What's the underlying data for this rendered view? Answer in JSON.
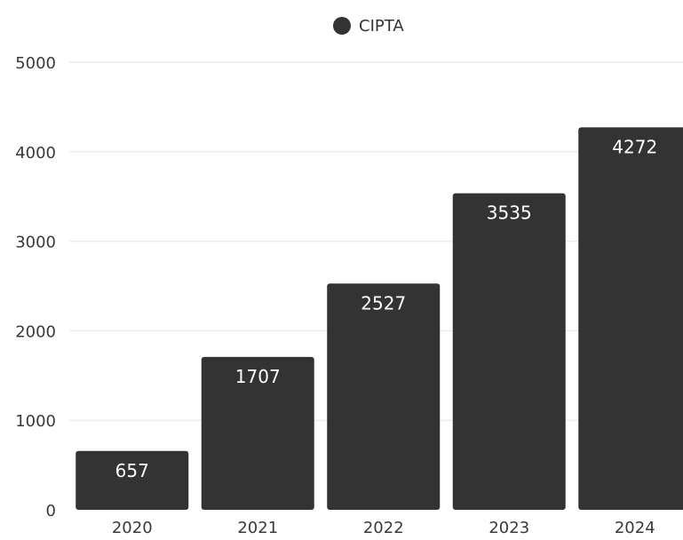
{
  "colors": {
    "bar": "#333333",
    "grid": "#ececec",
    "axis_text": "#3a3a3a",
    "bar_label": "#ffffff"
  },
  "chart_data": {
    "type": "bar",
    "categories": [
      "2020",
      "2021",
      "2022",
      "2023",
      "2024"
    ],
    "series": [
      {
        "name": "CIPTA",
        "values": [
          657,
          1707,
          2527,
          3535,
          4272
        ]
      }
    ],
    "yticks": [
      0,
      1000,
      2000,
      3000,
      4000,
      5000
    ],
    "ylim": [
      0,
      5000
    ],
    "grid": true,
    "legend": "top-center",
    "data_labels": true
  }
}
